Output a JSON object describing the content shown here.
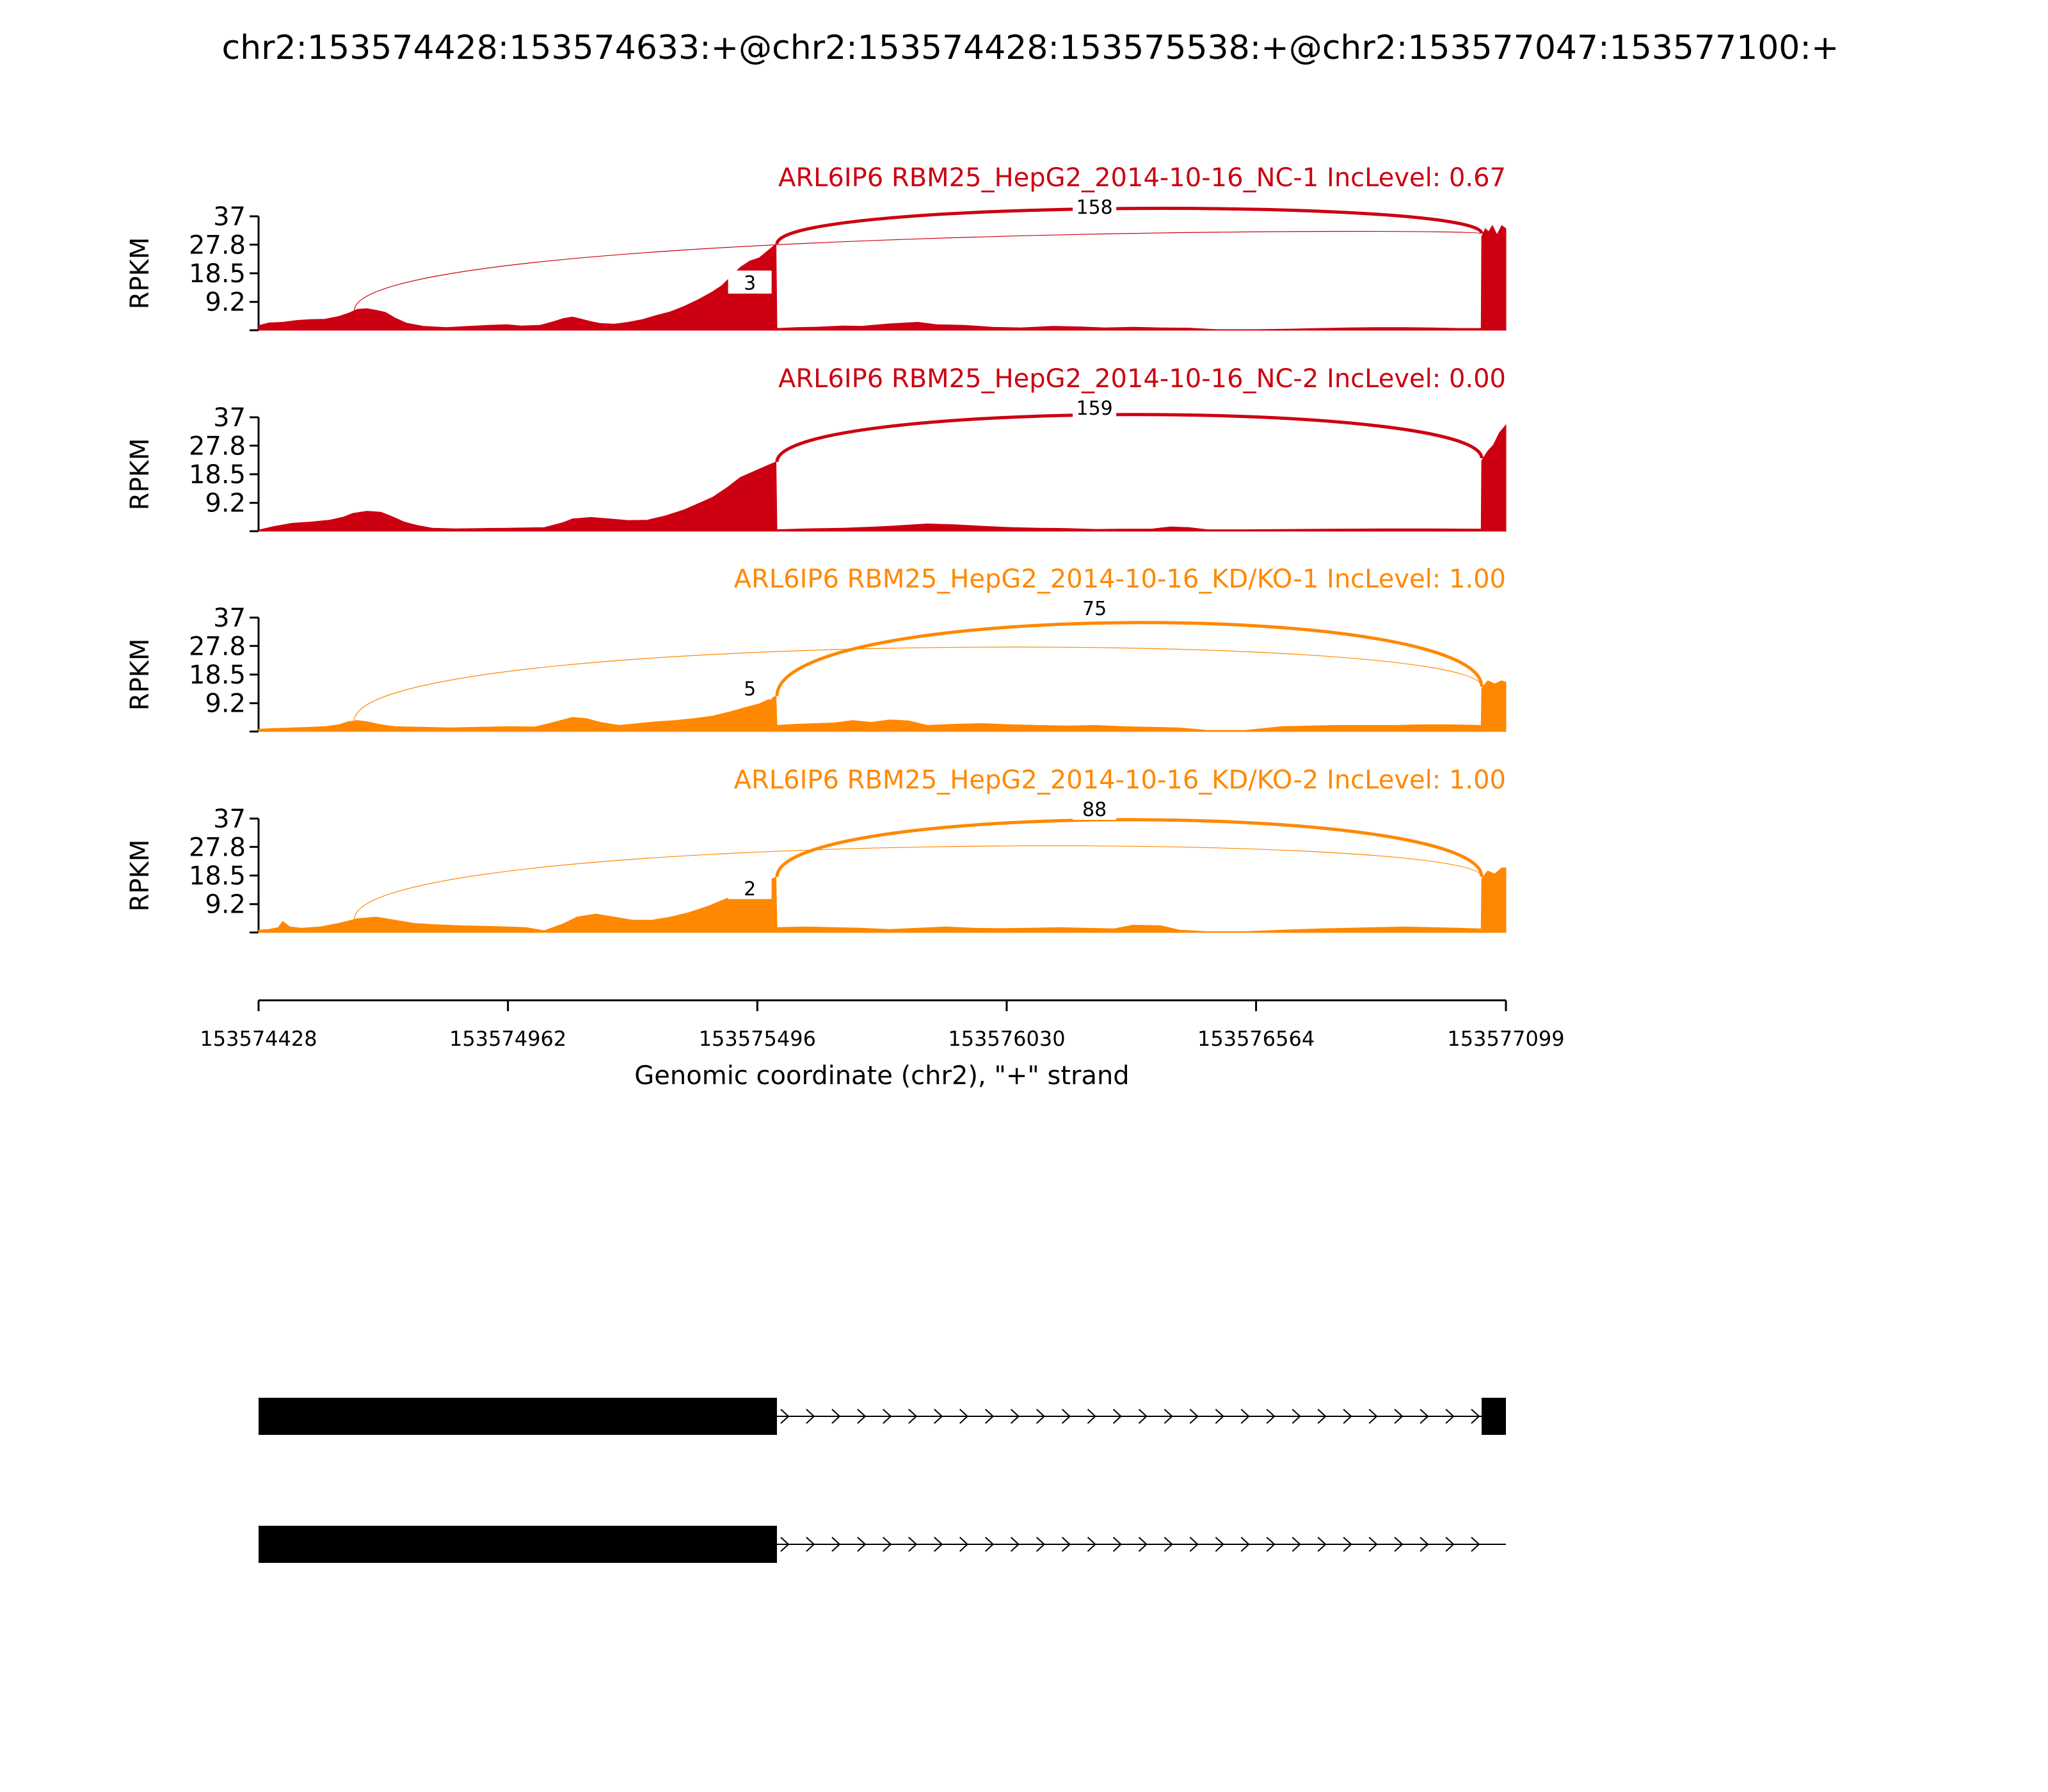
{
  "title": "chr2:153574428:153574633:+@chr2:153574428:153575538:+@chr2:153577047:153577100:+",
  "colors": {
    "nc": "#cc0011",
    "kd": "#ff8800",
    "axis": "#000000"
  },
  "chart_data": {
    "type": "area",
    "subtype": "sashimi",
    "x_range": [
      153574428,
      153577099
    ],
    "x_ticks": [
      "153574428",
      "153574962",
      "153575496",
      "153576030",
      "153576564",
      "153577099"
    ],
    "xlabel": "Genomic coordinate (chr2), \"+\" strand",
    "y_ticks": [
      "37",
      "27.8",
      "18.5",
      "9.2"
    ],
    "ylabel": "RPKM",
    "ylim": [
      0,
      37
    ],
    "tracks": [
      {
        "label": "ARL6IP6 RBM25_HepG2_2014-10-16_NC-1 IncLevel: 0.67",
        "group": "nc",
        "coverage": [
          [
            153574428,
            1.5
          ],
          [
            153574450,
            2.4
          ],
          [
            153574480,
            2.6
          ],
          [
            153574510,
            3.2
          ],
          [
            153574540,
            3.5
          ],
          [
            153574570,
            3.6
          ],
          [
            153574600,
            4.5
          ],
          [
            153574620,
            5.5
          ],
          [
            153574640,
            6.8
          ],
          [
            153574660,
            7.0
          ],
          [
            153574680,
            6.5
          ],
          [
            153574700,
            5.8
          ],
          [
            153574720,
            4.0
          ],
          [
            153574745,
            2.3
          ],
          [
            153574780,
            1.3
          ],
          [
            153574830,
            0.9
          ],
          [
            153574880,
            1.3
          ],
          [
            153574920,
            1.6
          ],
          [
            153574960,
            1.8
          ],
          [
            153574990,
            1.4
          ],
          [
            153575030,
            1.6
          ],
          [
            153575060,
            2.8
          ],
          [
            153575080,
            3.8
          ],
          [
            153575100,
            4.3
          ],
          [
            153575120,
            3.6
          ],
          [
            153575140,
            2.8
          ],
          [
            153575160,
            2.2
          ],
          [
            153575190,
            2.0
          ],
          [
            153575220,
            2.6
          ],
          [
            153575250,
            3.5
          ],
          [
            153575280,
            4.8
          ],
          [
            153575310,
            6.0
          ],
          [
            153575340,
            7.8
          ],
          [
            153575370,
            10.0
          ],
          [
            153575400,
            12.5
          ],
          [
            153575420,
            14.5
          ],
          [
            153575440,
            17.5
          ],
          [
            153575460,
            20.5
          ],
          [
            153575480,
            22.5
          ],
          [
            153575500,
            23.5
          ],
          [
            153575536,
            28.0
          ],
          [
            153575538,
            0.6
          ],
          [
            153575580,
            0.9
          ],
          [
            153575620,
            1.0
          ],
          [
            153575680,
            1.4
          ],
          [
            153575720,
            1.3
          ],
          [
            153575780,
            2.1
          ],
          [
            153575840,
            2.6
          ],
          [
            153575880,
            1.8
          ],
          [
            153575940,
            1.6
          ],
          [
            153576000,
            1.0
          ],
          [
            153576060,
            0.8
          ],
          [
            153576130,
            1.3
          ],
          [
            153576190,
            1.1
          ],
          [
            153576240,
            0.8
          ],
          [
            153576300,
            1.0
          ],
          [
            153576360,
            0.8
          ],
          [
            153576420,
            0.7
          ],
          [
            153576480,
            0.2
          ],
          [
            153576560,
            0.2
          ],
          [
            153576640,
            0.4
          ],
          [
            153576700,
            0.6
          ],
          [
            153576760,
            0.8
          ],
          [
            153576820,
            0.9
          ],
          [
            153576880,
            0.9
          ],
          [
            153576940,
            0.8
          ],
          [
            153577000,
            0.6
          ],
          [
            153577046,
            0.6
          ],
          [
            153577047,
            30.5
          ],
          [
            153577055,
            33.0
          ],
          [
            153577062,
            32.0
          ],
          [
            153577070,
            34.0
          ],
          [
            153577080,
            31.0
          ],
          [
            153577090,
            34.0
          ],
          [
            153577099,
            33.0
          ]
        ],
        "junctions": [
          {
            "from": 153575538,
            "to": 153577047,
            "count": "158",
            "weight": "thick"
          },
          {
            "from": 153574633,
            "to": 153577047,
            "count": "3",
            "weight": "thin"
          }
        ]
      },
      {
        "label": "ARL6IP6 RBM25_HepG2_2014-10-16_NC-2 IncLevel: 0.00",
        "group": "nc",
        "coverage": [
          [
            153574428,
            0.4
          ],
          [
            153574460,
            1.5
          ],
          [
            153574500,
            2.6
          ],
          [
            153574540,
            3.0
          ],
          [
            153574580,
            3.6
          ],
          [
            153574610,
            4.6
          ],
          [
            153574630,
            5.8
          ],
          [
            153574660,
            6.5
          ],
          [
            153574690,
            6.2
          ],
          [
            153574710,
            5.0
          ],
          [
            153574740,
            3.0
          ],
          [
            153574770,
            1.8
          ],
          [
            153574800,
            1.0
          ],
          [
            153574850,
            0.8
          ],
          [
            153574900,
            0.9
          ],
          [
            153574960,
            1.0
          ],
          [
            153575040,
            1.2
          ],
          [
            153575080,
            2.8
          ],
          [
            153575100,
            4.0
          ],
          [
            153575140,
            4.5
          ],
          [
            153575180,
            4.0
          ],
          [
            153575220,
            3.5
          ],
          [
            153575260,
            3.6
          ],
          [
            153575300,
            5.0
          ],
          [
            153575340,
            7.0
          ],
          [
            153575370,
            9.0
          ],
          [
            153575400,
            11.0
          ],
          [
            153575430,
            14.0
          ],
          [
            153575460,
            17.5
          ],
          [
            153575490,
            19.5
          ],
          [
            153575520,
            21.5
          ],
          [
            153575536,
            22.5
          ],
          [
            153575538,
            0.5
          ],
          [
            153575600,
            0.8
          ],
          [
            153575680,
            1.0
          ],
          [
            153575750,
            1.4
          ],
          [
            153575800,
            1.8
          ],
          [
            153575860,
            2.4
          ],
          [
            153575920,
            2.1
          ],
          [
            153575980,
            1.6
          ],
          [
            153576040,
            1.2
          ],
          [
            153576100,
            1.0
          ],
          [
            153576160,
            0.9
          ],
          [
            153576220,
            0.6
          ],
          [
            153576280,
            0.7
          ],
          [
            153576340,
            0.7
          ],
          [
            153576380,
            1.4
          ],
          [
            153576420,
            1.2
          ],
          [
            153576460,
            0.5
          ],
          [
            153576540,
            0.5
          ],
          [
            153576640,
            0.6
          ],
          [
            153576740,
            0.7
          ],
          [
            153576840,
            0.8
          ],
          [
            153576940,
            0.8
          ],
          [
            153577046,
            0.7
          ],
          [
            153577047,
            23.0
          ],
          [
            153577060,
            26.0
          ],
          [
            153577072,
            28.0
          ],
          [
            153577085,
            32.0
          ],
          [
            153577099,
            34.5
          ]
        ],
        "junctions": [
          {
            "from": 153575538,
            "to": 153577047,
            "count": "159",
            "weight": "thick"
          }
        ]
      },
      {
        "label": "ARL6IP6 RBM25_HepG2_2014-10-16_KD/KO-1 IncLevel: 1.00",
        "group": "kd",
        "coverage": [
          [
            153574428,
            0.8
          ],
          [
            153574460,
            1.0
          ],
          [
            153574500,
            1.2
          ],
          [
            153574540,
            1.4
          ],
          [
            153574570,
            1.6
          ],
          [
            153574600,
            2.2
          ],
          [
            153574620,
            3.2
          ],
          [
            153574640,
            3.6
          ],
          [
            153574660,
            3.2
          ],
          [
            153574690,
            2.2
          ],
          [
            153574720,
            1.6
          ],
          [
            153574780,
            1.4
          ],
          [
            153574840,
            1.2
          ],
          [
            153574900,
            1.4
          ],
          [
            153574960,
            1.6
          ],
          [
            153575020,
            1.5
          ],
          [
            153575060,
            3.0
          ],
          [
            153575100,
            4.6
          ],
          [
            153575130,
            4.2
          ],
          [
            153575160,
            3.0
          ],
          [
            153575200,
            2.0
          ],
          [
            153575240,
            2.6
          ],
          [
            153575280,
            3.2
          ],
          [
            153575320,
            3.6
          ],
          [
            153575360,
            4.2
          ],
          [
            153575400,
            5.0
          ],
          [
            153575440,
            6.5
          ],
          [
            153575470,
            7.8
          ],
          [
            153575500,
            9.0
          ],
          [
            153575536,
            11.5
          ],
          [
            153575538,
            2.0
          ],
          [
            153575580,
            2.4
          ],
          [
            153575620,
            2.6
          ],
          [
            153575660,
            2.8
          ],
          [
            153575700,
            3.6
          ],
          [
            153575740,
            3.0
          ],
          [
            153575780,
            3.8
          ],
          [
            153575820,
            3.5
          ],
          [
            153575860,
            2.0
          ],
          [
            153575920,
            2.4
          ],
          [
            153575980,
            2.6
          ],
          [
            153576040,
            2.2
          ],
          [
            153576100,
            2.0
          ],
          [
            153576160,
            1.8
          ],
          [
            153576220,
            2.0
          ],
          [
            153576280,
            1.6
          ],
          [
            153576340,
            1.4
          ],
          [
            153576400,
            1.2
          ],
          [
            153576460,
            0.4
          ],
          [
            153576540,
            0.4
          ],
          [
            153576620,
            1.6
          ],
          [
            153576680,
            1.8
          ],
          [
            153576740,
            2.0
          ],
          [
            153576800,
            2.0
          ],
          [
            153576860,
            2.0
          ],
          [
            153576920,
            2.2
          ],
          [
            153576980,
            2.2
          ],
          [
            153577046,
            2.0
          ],
          [
            153577047,
            14.0
          ],
          [
            153577060,
            16.5
          ],
          [
            153577075,
            15.5
          ],
          [
            153577090,
            16.5
          ],
          [
            153577099,
            16.0
          ]
        ],
        "junctions": [
          {
            "from": 153575538,
            "to": 153577047,
            "count": "75",
            "weight": "thick"
          },
          {
            "from": 153574633,
            "to": 153577047,
            "count": "5",
            "weight": "thin"
          }
        ]
      },
      {
        "label": "ARL6IP6 RBM25_HepG2_2014-10-16_KD/KO-2 IncLevel: 1.00",
        "group": "kd",
        "coverage": [
          [
            153574428,
            0.8
          ],
          [
            153574450,
            1.0
          ],
          [
            153574470,
            1.6
          ],
          [
            153574480,
            3.6
          ],
          [
            153574495,
            1.8
          ],
          [
            153574520,
            1.4
          ],
          [
            153574560,
            1.8
          ],
          [
            153574600,
            3.0
          ],
          [
            153574640,
            4.5
          ],
          [
            153574680,
            5.0
          ],
          [
            153574720,
            4.0
          ],
          [
            153574760,
            3.0
          ],
          [
            153574800,
            2.6
          ],
          [
            153574860,
            2.2
          ],
          [
            153574920,
            2.0
          ],
          [
            153574960,
            1.8
          ],
          [
            153575000,
            1.6
          ],
          [
            153575040,
            0.6
          ],
          [
            153575080,
            2.8
          ],
          [
            153575110,
            5.0
          ],
          [
            153575150,
            6.0
          ],
          [
            153575190,
            5.0
          ],
          [
            153575230,
            4.0
          ],
          [
            153575270,
            4.0
          ],
          [
            153575310,
            5.0
          ],
          [
            153575350,
            6.5
          ],
          [
            153575390,
            8.5
          ],
          [
            153575430,
            11.0
          ],
          [
            153575470,
            13.5
          ],
          [
            153575500,
            15.5
          ],
          [
            153575536,
            18.0
          ],
          [
            153575538,
            1.6
          ],
          [
            153575600,
            1.8
          ],
          [
            153575660,
            1.6
          ],
          [
            153575720,
            1.4
          ],
          [
            153575780,
            1.0
          ],
          [
            153575840,
            1.4
          ],
          [
            153575900,
            1.8
          ],
          [
            153575960,
            1.4
          ],
          [
            153576020,
            1.3
          ],
          [
            153576080,
            1.4
          ],
          [
            153576140,
            1.6
          ],
          [
            153576200,
            1.4
          ],
          [
            153576260,
            1.2
          ],
          [
            153576300,
            2.4
          ],
          [
            153576360,
            2.2
          ],
          [
            153576400,
            0.8
          ],
          [
            153576460,
            0.3
          ],
          [
            153576540,
            0.3
          ],
          [
            153576620,
            0.8
          ],
          [
            153576700,
            1.2
          ],
          [
            153576760,
            1.4
          ],
          [
            153576820,
            1.6
          ],
          [
            153576880,
            1.8
          ],
          [
            153576940,
            1.6
          ],
          [
            153577000,
            1.4
          ],
          [
            153577046,
            1.2
          ],
          [
            153577047,
            17.5
          ],
          [
            153577060,
            20.0
          ],
          [
            153577075,
            19.0
          ],
          [
            153577090,
            21.0
          ],
          [
            153577099,
            21.0
          ]
        ],
        "junctions": [
          {
            "from": 153575538,
            "to": 153577047,
            "count": "88",
            "weight": "thick"
          },
          {
            "from": 153574633,
            "to": 153577047,
            "count": "2",
            "weight": "thin"
          }
        ]
      }
    ],
    "isoforms": [
      {
        "exons": [
          [
            153574428,
            153575538
          ],
          [
            153577047,
            153577099
          ]
        ],
        "intron": [
          153575538,
          153577099
        ]
      },
      {
        "exons": [
          [
            153574428,
            153575538
          ]
        ],
        "intron": [
          153575538,
          153577099
        ]
      }
    ]
  }
}
